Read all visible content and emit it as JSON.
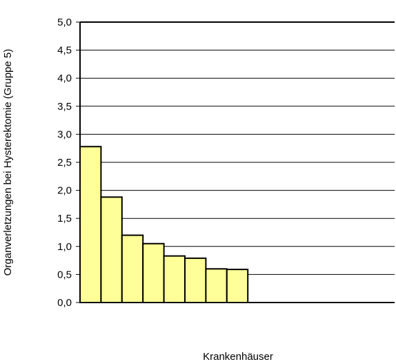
{
  "chart_data": {
    "type": "bar",
    "title": "",
    "xlabel": "Krankenhäuser",
    "ylabel": "Organverletzungen bei Hysterektomie (Gruppe 5)",
    "ylim": [
      0,
      5
    ],
    "yticks": [
      "0,0",
      "0,5",
      "1,0",
      "1,5",
      "2,0",
      "2,5",
      "3,0",
      "3,5",
      "4,0",
      "4,5",
      "5,0"
    ],
    "grid": true,
    "slots": 15,
    "values": [
      2.78,
      1.88,
      1.2,
      1.05,
      0.83,
      0.79,
      0.6,
      0.59
    ],
    "bar_color": "#ffff99",
    "edge_color": "#000000"
  }
}
